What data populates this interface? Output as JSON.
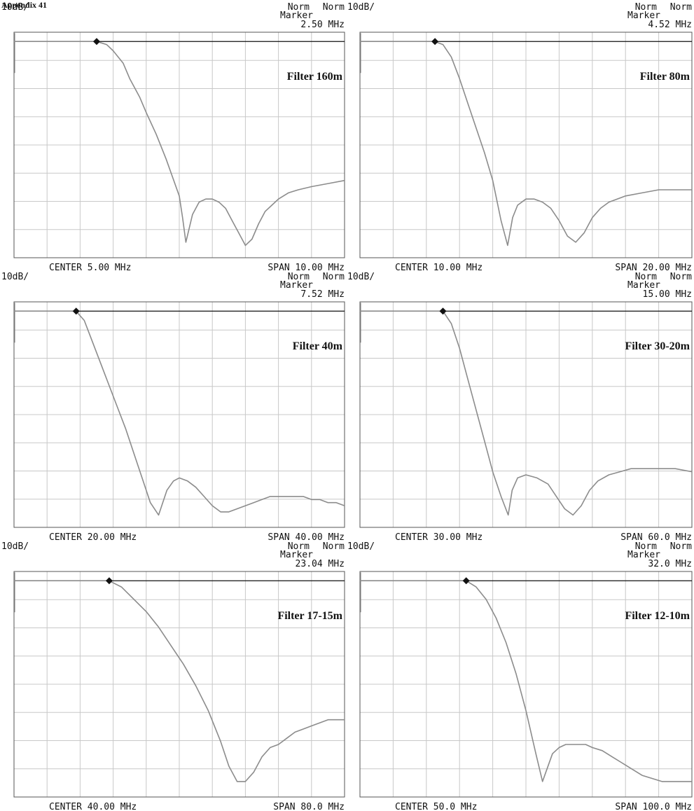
{
  "page_label": "Appendix 41",
  "chart_data": [
    {
      "type": "line",
      "title": "Filter 160m",
      "scale_label": "10dB/",
      "mode_labels": [
        "Norm",
        "Norm"
      ],
      "marker": {
        "label": "Marker",
        "value_text": "2.50 MHz",
        "x": 2.5,
        "y": 0
      },
      "center_text": "CENTER 5.00 MHz",
      "span_text": "SPAN 10.00 MHz",
      "xlim": [
        0,
        10
      ],
      "ylim": [
        -70,
        3
      ],
      "grid": true,
      "series": [
        {
          "x": [
            0,
            0.5,
            1,
            1.5,
            2,
            2.5,
            2.8,
            3,
            3.3,
            3.5,
            3.8,
            4,
            4.3,
            4.6,
            5,
            5.1,
            5.2,
            5.4,
            5.6,
            5.8,
            6,
            6.2,
            6.4,
            6.6,
            6.8,
            7,
            7.2,
            7.4,
            7.6,
            7.8,
            8,
            8.3,
            8.6,
            9,
            9.5,
            10
          ],
          "y": [
            0,
            0,
            0,
            0,
            0,
            0,
            -1,
            -3,
            -7,
            -12,
            -18,
            -23,
            -30,
            -38,
            -50,
            -57,
            -65,
            -56,
            -52,
            -51,
            -51,
            -52,
            -54,
            -58,
            -62,
            -66,
            -64,
            -59,
            -55,
            -53,
            -51,
            -49,
            -48,
            -47,
            -46,
            -45
          ]
        }
      ]
    },
    {
      "type": "line",
      "title": "Filter 80m",
      "scale_label": "10dB/",
      "mode_labels": [
        "Norm",
        "Norm"
      ],
      "marker": {
        "label": "Marker",
        "value_text": "4.52 MHz",
        "x": 4.52,
        "y": 0
      },
      "center_text": "CENTER 10.00 MHz",
      "span_text": "SPAN 20.00 MHz",
      "xlim": [
        0,
        20
      ],
      "ylim": [
        -70,
        3
      ],
      "grid": true,
      "series": [
        {
          "x": [
            0,
            1,
            2,
            3,
            4,
            4.5,
            5,
            5.5,
            6,
            6.5,
            7,
            7.5,
            8,
            8.5,
            8.9,
            9.2,
            9.5,
            10,
            10.5,
            11,
            11.5,
            12,
            12.5,
            13,
            13.5,
            14,
            14.5,
            15,
            16,
            17,
            18,
            19,
            20
          ],
          "y": [
            0,
            0,
            0,
            0,
            0,
            0,
            -1,
            -5,
            -12,
            -20,
            -28,
            -36,
            -45,
            -58,
            -66,
            -57,
            -53,
            -51,
            -51,
            -52,
            -54,
            -58,
            -63,
            -65,
            -62,
            -57,
            -54,
            -52,
            -50,
            -49,
            -48,
            -48,
            -48
          ]
        }
      ]
    },
    {
      "type": "line",
      "title": "Filter 40m",
      "scale_label": "10dB/",
      "mode_labels": [
        "Norm",
        "Norm"
      ],
      "marker": {
        "label": "Marker",
        "value_text": "7.52 MHz",
        "x": 7.52,
        "y": 0
      },
      "center_text": "CENTER 20.00 MHz",
      "span_text": "SPAN 40.00 MHz",
      "xlim": [
        0,
        40
      ],
      "ylim": [
        -70,
        3
      ],
      "grid": true,
      "series": [
        {
          "x": [
            0,
            2,
            4,
            6,
            7.5,
            8.5,
            9.5,
            10.5,
            11.5,
            12.5,
            13.5,
            14.5,
            15.5,
            16.5,
            17.5,
            18.5,
            19.3,
            20,
            21,
            22,
            23,
            24,
            25,
            26,
            27,
            28,
            29,
            30,
            31,
            32,
            33,
            34,
            35,
            36,
            37,
            38,
            39,
            40
          ],
          "y": [
            0,
            0,
            0,
            0,
            0,
            -3,
            -10,
            -17,
            -24,
            -31,
            -38,
            -46,
            -54,
            -62,
            -66,
            -58,
            -55,
            -54,
            -55,
            -57,
            -60,
            -63,
            -65,
            -65,
            -64,
            -63,
            -62,
            -61,
            -60,
            -60,
            -60,
            -60,
            -60,
            -61,
            -61,
            -62,
            -62,
            -63
          ]
        }
      ]
    },
    {
      "type": "line",
      "title": "Filter 30-20m",
      "scale_label": "10dB/",
      "mode_labels": [
        "Norm",
        "Norm"
      ],
      "marker": {
        "label": "Marker",
        "value_text": "15.00 MHz",
        "x": 15.0,
        "y": 0
      },
      "center_text": "CENTER 30.00 MHz",
      "span_text": "SPAN 60.0 MHz",
      "xlim": [
        0,
        60
      ],
      "ylim": [
        -70,
        3
      ],
      "grid": true,
      "series": [
        {
          "x": [
            0,
            4,
            8,
            12,
            15,
            16.5,
            18,
            19.5,
            21,
            22.5,
            24,
            25.5,
            26.8,
            27.5,
            28.5,
            30,
            32,
            34,
            35.5,
            37,
            38.5,
            40,
            41.5,
            43,
            45,
            47,
            49,
            51,
            53,
            55,
            57,
            60
          ],
          "y": [
            0,
            0,
            0,
            0,
            0,
            -4,
            -12,
            -22,
            -32,
            -42,
            -52,
            -60,
            -66,
            -58,
            -54,
            -53,
            -54,
            -56,
            -60,
            -64,
            -66,
            -63,
            -58,
            -55,
            -53,
            -52,
            -51,
            -51,
            -51,
            -51,
            -51,
            -52
          ]
        }
      ]
    },
    {
      "type": "line",
      "title": "Filter 17-15m",
      "scale_label": "10dB/",
      "mode_labels": [
        "Norm",
        "Norm"
      ],
      "marker": {
        "label": "Marker",
        "value_text": "23.04 MHz",
        "x": 23.04,
        "y": 0
      },
      "center_text": "CENTER 40.00 MHz",
      "span_text": "SPAN 80.0 MHz",
      "xlim": [
        0,
        80
      ],
      "ylim": [
        -70,
        3
      ],
      "grid": true,
      "series": [
        {
          "x": [
            0,
            5,
            10,
            15,
            20,
            23,
            26,
            29,
            32,
            35,
            38,
            41,
            44,
            47,
            50,
            52,
            54,
            56,
            58,
            60,
            62,
            64,
            66,
            68,
            70,
            72,
            74,
            76,
            78,
            80
          ],
          "y": [
            0,
            0,
            0,
            0,
            0,
            0,
            -2,
            -6,
            -10,
            -15,
            -21,
            -27,
            -34,
            -42,
            -52,
            -60,
            -65,
            -65,
            -62,
            -57,
            -54,
            -53,
            -51,
            -49,
            -48,
            -47,
            -46,
            -45,
            -45,
            -45
          ]
        }
      ]
    },
    {
      "type": "line",
      "title": "Filter 12-10m",
      "scale_label": "10dB/",
      "mode_labels": [
        "Norm",
        "Norm"
      ],
      "marker": {
        "label": "Marker",
        "value_text": "32.0 MHz",
        "x": 32.0,
        "y": 0
      },
      "center_text": "CENTER 50.0 MHz",
      "span_text": "SPAN 100.0 MHz",
      "xlim": [
        0,
        100
      ],
      "ylim": [
        -70,
        3
      ],
      "grid": true,
      "series": [
        {
          "x": [
            0,
            5,
            10,
            15,
            20,
            25,
            30,
            32,
            35,
            38,
            41,
            44,
            47,
            50,
            53,
            55,
            56,
            58,
            60,
            62,
            64,
            66,
            68,
            70,
            73,
            76,
            79,
            82,
            85,
            88,
            91,
            94,
            97,
            100
          ],
          "y": [
            0,
            0,
            0,
            0,
            0,
            0,
            0,
            0,
            -2,
            -6,
            -12,
            -20,
            -30,
            -42,
            -56,
            -65,
            -62,
            -56,
            -54,
            -53,
            -53,
            -53,
            -53,
            -54,
            -55,
            -57,
            -59,
            -61,
            -63,
            -64,
            -65,
            -65,
            -65,
            -65
          ]
        }
      ]
    }
  ],
  "colors": {
    "trace": "#8c8c8c",
    "grid": "#c8c8c8",
    "frame": "#555555",
    "reference": "#111111"
  }
}
